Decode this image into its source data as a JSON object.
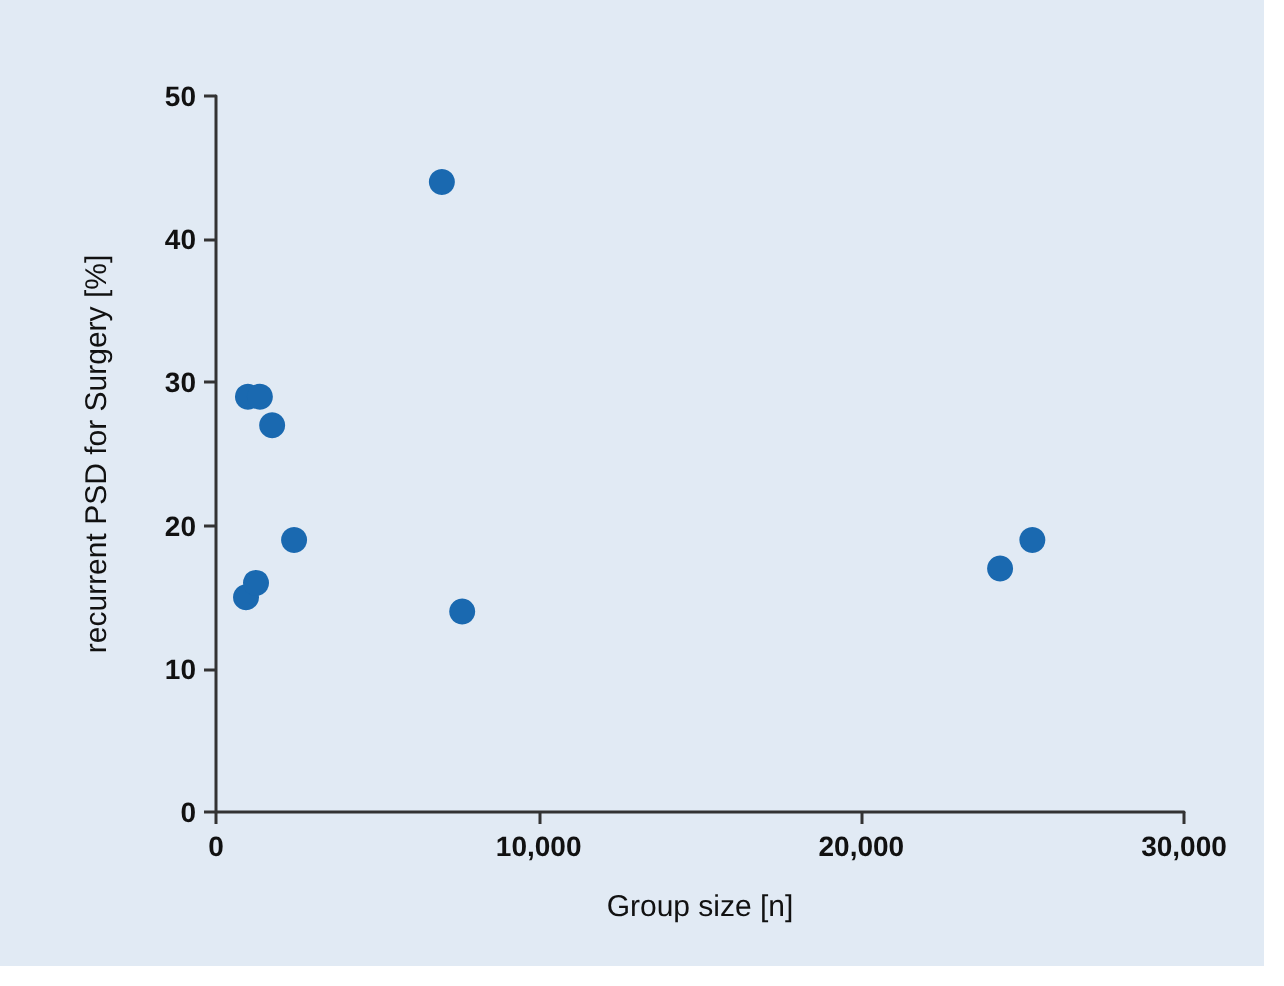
{
  "chart_data": {
    "type": "scatter",
    "xlabel": "Group size [n]",
    "ylabel": "recurrent PSD for Surgery [%]",
    "x": [
      930,
      1240,
      990,
      1360,
      1740,
      2420,
      7000,
      7630,
      24300,
      25300
    ],
    "series": [
      {
        "color": "#1a69b0",
        "values": [
          15,
          16,
          29,
          29,
          27,
          19,
          44,
          14,
          17,
          19
        ]
      }
    ],
    "xlim": [
      0,
      30000
    ],
    "xticks": [
      0,
      {
        "value": 10000,
        "label": "10,000"
      },
      {
        "value": 20000,
        "label": "20,000"
      },
      {
        "value": 30000,
        "label": "30,000"
      }
    ],
    "ylim": [
      0,
      50
    ],
    "yticks": [
      0,
      10,
      20,
      30,
      40,
      50
    ],
    "marker": "circle"
  }
}
